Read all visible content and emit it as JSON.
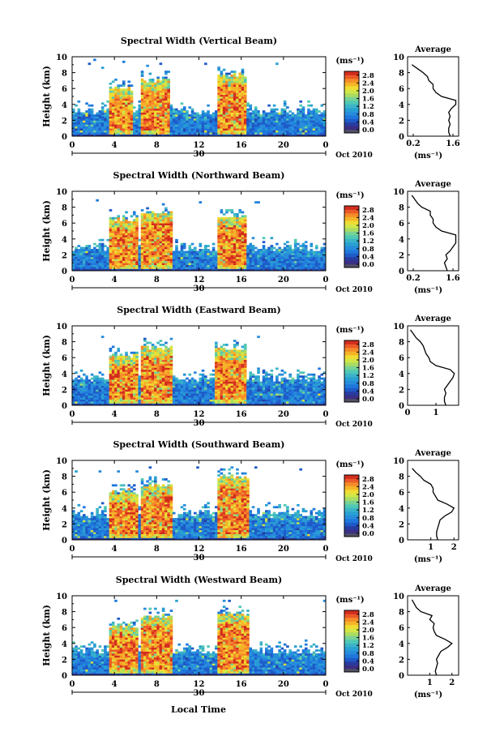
{
  "figure": {
    "x_label": "Local Time",
    "date_label": "Oct 2010",
    "day_label": "30",
    "unit_label": "(ms⁻¹)",
    "avg_title": "Average",
    "height_label": "Height (km)",
    "colors": {
      "scale": [
        "#3c2f84",
        "#283ca0",
        "#1e5ac8",
        "#1e78dc",
        "#288cdc",
        "#28a0d2",
        "#3cb4c8",
        "#50c8b4",
        "#78d296",
        "#aadc64",
        "#d2e646",
        "#f0dc32",
        "#f5b428",
        "#f58c28",
        "#eb5a28",
        "#d22d1e"
      ],
      "bottom_band": "#505064"
    }
  },
  "chart_data": [
    {
      "type": "heatmap",
      "title": "Spectral Width (Vertical Beam)",
      "xlabel": "",
      "ylabel": "Height (km)",
      "xlim": [
        0,
        24
      ],
      "ylim": [
        0,
        10
      ],
      "x_ticks": [
        "0",
        "4",
        "8",
        "12",
        "16",
        "20",
        "0"
      ],
      "y_ticks": [
        "0",
        "2",
        "4",
        "6",
        "8",
        "10"
      ],
      "colorbar": {
        "label": "(ms⁻¹)",
        "ticks": [
          "0.0",
          "0.4",
          "0.8",
          "1.2",
          "1.6",
          "2.0",
          "2.4",
          "2.8"
        ],
        "range": [
          0,
          3
        ]
      },
      "structure": {
        "base_top": 3.3,
        "cells": [
          {
            "x": [
              3.6,
              5.8
            ],
            "top": 6.4
          },
          {
            "x": [
              6.4,
              9.2
            ],
            "top": 7.4
          },
          {
            "x": [
              13.8,
              16.6
            ],
            "top": 8.0
          }
        ],
        "upper_speckle": 9.8
      },
      "average_profile": {
        "xlabel": "(ms⁻¹)",
        "x_ticks": [
          "0.2",
          "1.6"
        ],
        "xlim": [
          0,
          1.8
        ],
        "height": [
          0,
          0.5,
          1,
          1.5,
          2,
          2.5,
          3,
          3.5,
          4,
          4.5,
          5,
          5.5,
          6,
          6.5,
          7,
          7.5,
          8,
          8.5,
          9
        ],
        "value": [
          1.5,
          1.45,
          1.45,
          1.5,
          1.45,
          1.5,
          1.45,
          1.55,
          1.7,
          1.7,
          1.2,
          1.0,
          0.9,
          0.9,
          0.75,
          0.7,
          0.55,
          0.35,
          0.15
        ]
      }
    },
    {
      "type": "heatmap",
      "title": "Spectral Width (Northward Beam)",
      "xlabel": "",
      "ylabel": "Height (km)",
      "xlim": [
        0,
        24
      ],
      "ylim": [
        0,
        10
      ],
      "x_ticks": [
        "0",
        "4",
        "8",
        "12",
        "16",
        "20",
        "0"
      ],
      "y_ticks": [
        "0",
        "2",
        "4",
        "6",
        "8",
        "10"
      ],
      "colorbar": {
        "label": "(ms⁻¹)",
        "ticks": [
          "0.0",
          "0.4",
          "0.8",
          "1.2",
          "1.6",
          "2.0",
          "2.4",
          "2.8"
        ],
        "range": [
          0,
          3
        ]
      },
      "structure": {
        "base_top": 3.0,
        "cells": [
          {
            "x": [
              3.4,
              6.2
            ],
            "top": 6.8
          },
          {
            "x": [
              6.6,
              9.4
            ],
            "top": 7.6
          },
          {
            "x": [
              13.8,
              16.6
            ],
            "top": 7.2
          }
        ],
        "upper_speckle": 9.0
      },
      "average_profile": {
        "xlabel": "(ms⁻¹)",
        "x_ticks": [
          "0.2",
          "1.6"
        ],
        "xlim": [
          0,
          1.8
        ],
        "height": [
          0,
          0.5,
          1,
          1.5,
          2,
          2.5,
          3,
          3.5,
          4,
          4.5,
          5,
          5.5,
          6,
          6.5,
          7,
          7.5,
          8,
          8.5,
          9,
          9.5
        ],
        "value": [
          1.4,
          1.35,
          1.3,
          1.4,
          1.35,
          1.5,
          1.6,
          1.7,
          1.7,
          1.7,
          1.2,
          1.0,
          0.9,
          0.9,
          0.8,
          0.8,
          0.5,
          0.35,
          0.25,
          0.15
        ]
      }
    },
    {
      "type": "heatmap",
      "title": "Spectral Width (Eastward Beam)",
      "xlabel": "",
      "ylabel": "Height (km)",
      "xlim": [
        0,
        24
      ],
      "ylim": [
        0,
        10
      ],
      "x_ticks": [
        "0",
        "4",
        "8",
        "12",
        "16",
        "20",
        "0"
      ],
      "y_ticks": [
        "0",
        "2",
        "4",
        "6",
        "8",
        "10"
      ],
      "colorbar": {
        "label": "(ms⁻¹)",
        "ticks": [
          "0.0",
          "0.4",
          "0.8",
          "1.2",
          "1.6",
          "2.0",
          "2.4",
          "2.8"
        ],
        "range": [
          0,
          3
        ]
      },
      "structure": {
        "base_top": 3.6,
        "cells": [
          {
            "x": [
              3.4,
              6.2
            ],
            "top": 6.6
          },
          {
            "x": [
              6.6,
              9.6
            ],
            "top": 7.6
          },
          {
            "x": [
              13.6,
              16.6
            ],
            "top": 7.4
          }
        ],
        "upper_speckle": 8.8
      },
      "average_profile": {
        "xlabel": "",
        "x_ticks": [
          "0",
          "1"
        ],
        "xlim": [
          0,
          1.8
        ],
        "height": [
          0,
          0.5,
          1,
          1.5,
          2,
          2.5,
          3,
          3.5,
          4,
          4.5,
          5,
          5.5,
          6,
          6.5,
          7,
          7.5,
          8,
          8.5,
          9,
          9.5
        ],
        "value": [
          1.35,
          1.3,
          1.3,
          1.35,
          1.3,
          1.4,
          1.5,
          1.6,
          1.65,
          1.5,
          1.0,
          0.8,
          0.75,
          0.65,
          0.6,
          0.55,
          0.45,
          0.3,
          0.2,
          0.1
        ]
      }
    },
    {
      "type": "heatmap",
      "title": "Spectral Width (Southward Beam)",
      "xlabel": "",
      "ylabel": "Height (km)",
      "xlim": [
        0,
        24
      ],
      "ylim": [
        0,
        10
      ],
      "x_ticks": [
        "0",
        "4",
        "8",
        "12",
        "16",
        "20",
        "0"
      ],
      "y_ticks": [
        "0",
        "2",
        "4",
        "6",
        "8",
        "10"
      ],
      "colorbar": {
        "label": "(ms⁻¹)",
        "ticks": [
          "0.0",
          "0.4",
          "0.8",
          "1.2",
          "1.6",
          "2.0",
          "2.4",
          "2.8"
        ],
        "range": [
          0,
          3
        ]
      },
      "structure": {
        "base_top": 3.4,
        "cells": [
          {
            "x": [
              3.4,
              6.2
            ],
            "top": 6.4
          },
          {
            "x": [
              6.6,
              9.4
            ],
            "top": 7.2
          },
          {
            "x": [
              13.8,
              16.8
            ],
            "top": 8.2
          }
        ],
        "upper_speckle": 9.2
      },
      "average_profile": {
        "xlabel": "(ms⁻¹)",
        "x_ticks": [
          "1",
          "2"
        ],
        "xlim": [
          0,
          2.2
        ],
        "height": [
          0,
          0.5,
          1,
          1.5,
          2,
          2.5,
          3,
          3.5,
          4,
          4.5,
          5,
          5.5,
          6,
          6.5,
          7,
          7.5,
          8,
          8.5,
          9
        ],
        "value": [
          1.3,
          1.25,
          1.25,
          1.3,
          1.35,
          1.4,
          1.6,
          1.9,
          2.0,
          1.7,
          1.3,
          1.2,
          1.1,
          1.1,
          1.0,
          0.7,
          0.55,
          0.35,
          0.2
        ]
      }
    },
    {
      "type": "heatmap",
      "title": "Spectral Width (Westward Beam)",
      "xlabel": "Local Time",
      "ylabel": "Height (km)",
      "xlim": [
        0,
        24
      ],
      "ylim": [
        0,
        10
      ],
      "x_ticks": [
        "0",
        "4",
        "8",
        "12",
        "16",
        "20",
        "0"
      ],
      "y_ticks": [
        "0",
        "2",
        "4",
        "6",
        "8",
        "10"
      ],
      "colorbar": {
        "label": "(ms⁻¹)",
        "ticks": [
          "0.0",
          "0.4",
          "0.8",
          "1.2",
          "1.6",
          "2.0",
          "2.4",
          "2.8"
        ],
        "range": [
          0,
          3
        ]
      },
      "structure": {
        "base_top": 3.2,
        "cells": [
          {
            "x": [
              3.4,
              6.2
            ],
            "top": 6.6
          },
          {
            "x": [
              6.4,
              9.4
            ],
            "top": 7.8
          },
          {
            "x": [
              13.8,
              16.8
            ],
            "top": 8.0
          }
        ],
        "upper_speckle": 9.6
      },
      "average_profile": {
        "xlabel": "(ms⁻¹)",
        "x_ticks": [
          "1",
          "2"
        ],
        "xlim": [
          0,
          2.3
        ],
        "height": [
          0,
          0.5,
          1,
          1.5,
          2,
          2.5,
          3,
          3.5,
          4,
          4.5,
          5,
          5.5,
          6,
          6.5,
          7,
          7.5,
          8,
          8.5,
          9,
          9.5
        ],
        "value": [
          1.3,
          1.25,
          1.3,
          1.35,
          1.3,
          1.4,
          1.5,
          1.8,
          2.0,
          1.7,
          1.3,
          1.2,
          1.15,
          1.2,
          1.0,
          1.1,
          0.6,
          0.4,
          0.3,
          0.2
        ]
      }
    }
  ]
}
